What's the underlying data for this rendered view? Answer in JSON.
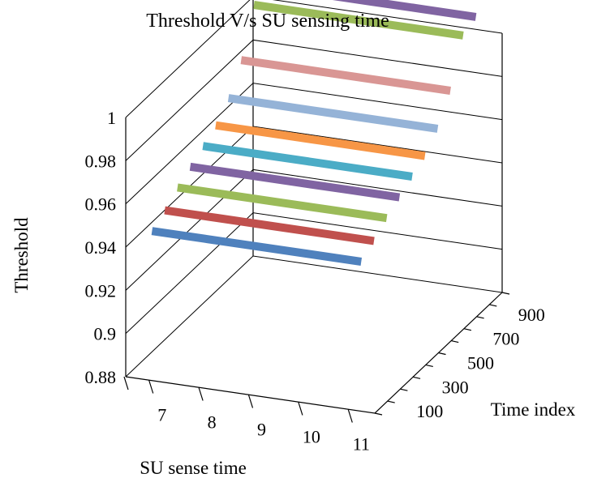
{
  "chart_data": {
    "type": "line",
    "variant": "3d-ribbon",
    "title": "Threshold V/s SU sensing time",
    "ylabel": "Threshold",
    "xlabel": "SU sense time",
    "zlabel": "Time index",
    "y_ticks": [
      "0.88",
      "0.9",
      "0.92",
      "0.94",
      "0.96",
      "0.98",
      "1"
    ],
    "x_ticks": [
      "7",
      "8",
      "9",
      "10",
      "11"
    ],
    "z_ticks": [
      "100",
      "300",
      "500",
      "700",
      "900"
    ],
    "ylim": [
      0.88,
      1.0
    ],
    "grid": true,
    "series": [
      {
        "color": "#4F81BD",
        "values": [
          0.946,
          0.946,
          0.946,
          0.946,
          0.946
        ]
      },
      {
        "color": "#C0504D",
        "values": [
          0.95,
          0.95,
          0.95,
          0.95,
          0.95
        ]
      },
      {
        "color": "#9BBB59",
        "values": [
          0.955,
          0.955,
          0.955,
          0.955,
          0.955
        ]
      },
      {
        "color": "#8064A2",
        "values": [
          0.959,
          0.959,
          0.959,
          0.959,
          0.959
        ]
      },
      {
        "color": "#4BACC6",
        "values": [
          0.963,
          0.963,
          0.963,
          0.963,
          0.963
        ]
      },
      {
        "color": "#F79646",
        "values": [
          0.967,
          0.967,
          0.967,
          0.967,
          0.967
        ]
      },
      {
        "color": "#95B3D7",
        "values": [
          0.974,
          0.974,
          0.974,
          0.974,
          0.974
        ]
      },
      {
        "color": "#D99694",
        "values": [
          0.986,
          0.986,
          0.986,
          0.986,
          0.986
        ]
      },
      {
        "color": "#9BBB59",
        "values": [
          1.006,
          1.006,
          1.006,
          1.006,
          1.006
        ]
      },
      {
        "color": "#8064A2",
        "values": [
          1.009,
          1.009,
          1.009,
          1.009,
          1.009
        ]
      }
    ]
  }
}
